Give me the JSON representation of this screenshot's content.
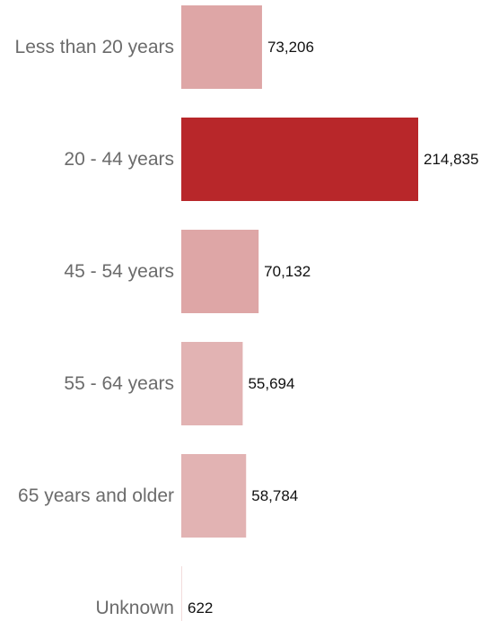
{
  "chart_data": {
    "type": "bar",
    "orientation": "horizontal",
    "categories": [
      "Less than 20 years",
      "20 -  44 years",
      "45 - 54 years",
      "55 - 64 years",
      "65 years and older",
      "Unknown"
    ],
    "values": [
      73206,
      214835,
      70132,
      55694,
      58784,
      622
    ],
    "value_labels": [
      "73,206",
      "214,835",
      "70,132",
      "55,694",
      "58,784",
      "622"
    ],
    "colors": [
      "#dea6a6",
      "#b8272a",
      "#dea6a6",
      "#e2b3b3",
      "#e2b3b3",
      "#f2dcdc"
    ],
    "title": "",
    "xlabel": "",
    "ylabel": "",
    "xlim": [
      0,
      214835
    ],
    "grid": false,
    "legend": "none"
  }
}
